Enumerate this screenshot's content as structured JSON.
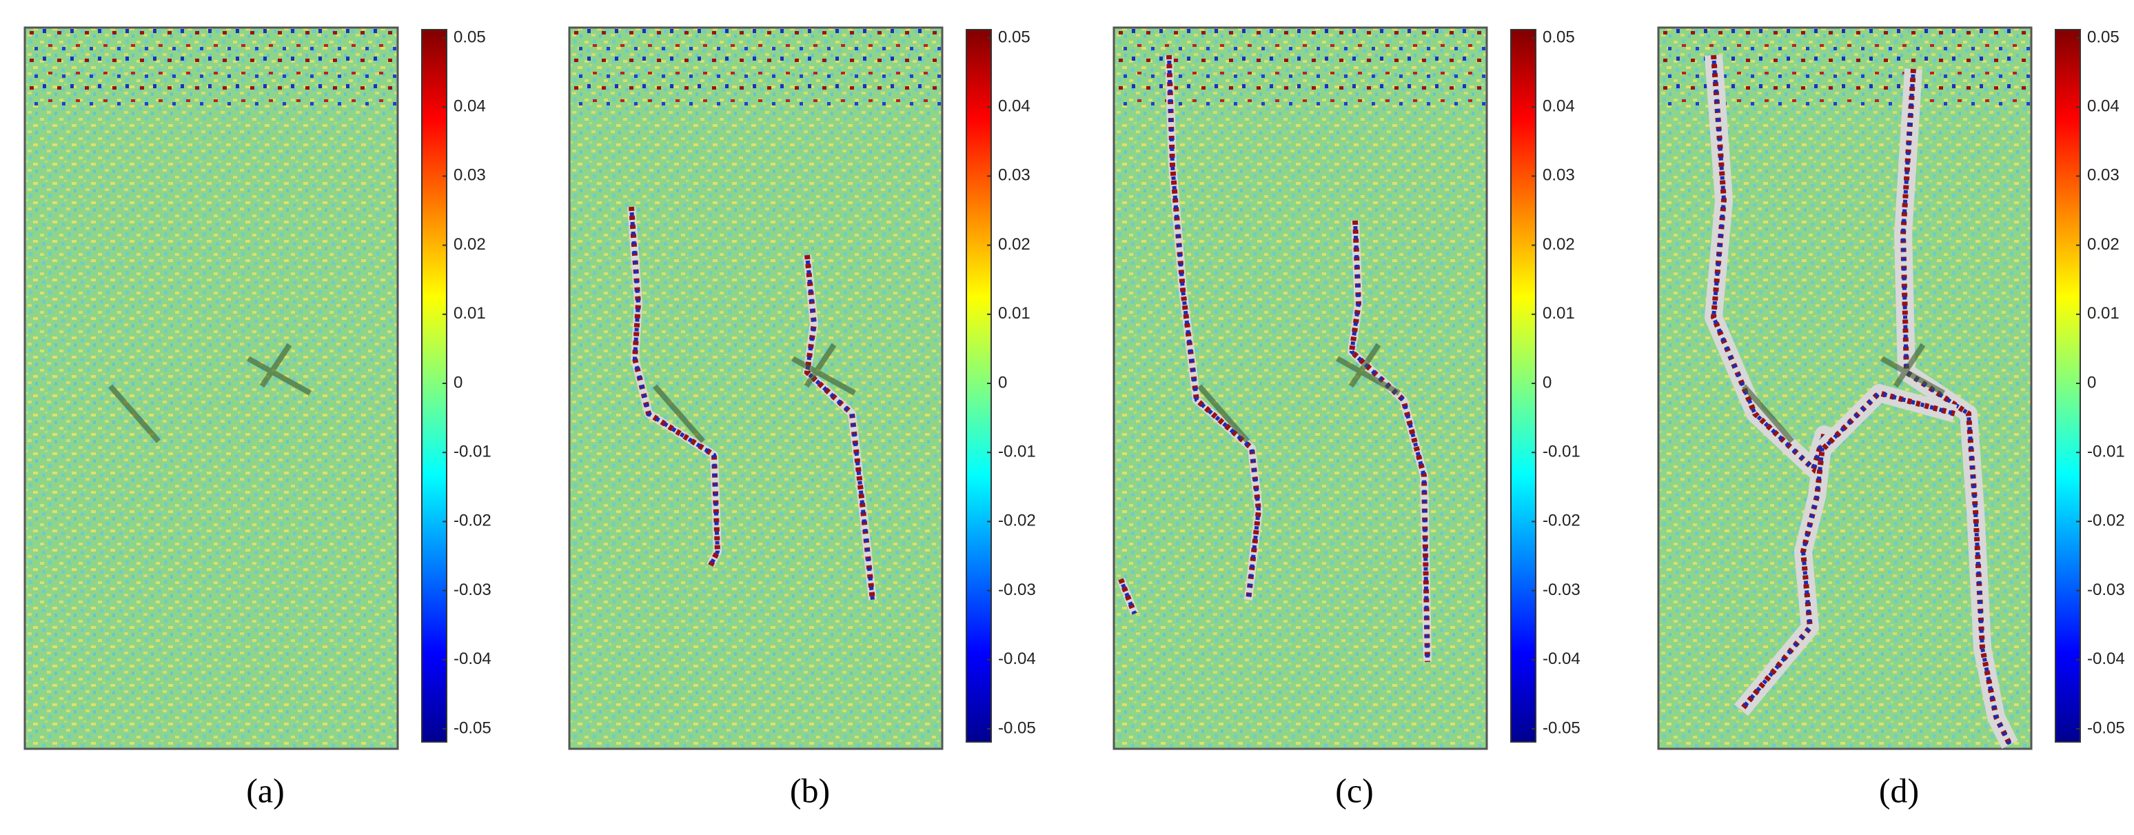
{
  "panels": [
    {
      "label": "(a)",
      "colorbar": {
        "ticks": [
          0.05,
          0.04,
          0.03,
          0.02,
          0.01,
          0,
          -0.01,
          -0.02,
          -0.03,
          -0.04,
          -0.05
        ]
      }
    },
    {
      "label": "(b)",
      "colorbar": {
        "ticks": [
          0.05,
          0.04,
          0.03,
          0.02,
          0.01,
          0,
          -0.01,
          -0.02,
          -0.03,
          -0.04,
          -0.05
        ]
      }
    },
    {
      "label": "(c)",
      "colorbar": {
        "ticks": [
          0.05,
          0.04,
          0.03,
          0.02,
          0.01,
          0,
          -0.01,
          -0.02,
          -0.03,
          -0.04,
          -0.05
        ]
      }
    },
    {
      "label": "(d)",
      "colorbar": {
        "ticks": [
          0.05,
          0.04,
          0.03,
          0.02,
          0.01,
          0,
          -0.01,
          -0.02,
          -0.03,
          -0.04,
          -0.05
        ]
      }
    }
  ]
}
